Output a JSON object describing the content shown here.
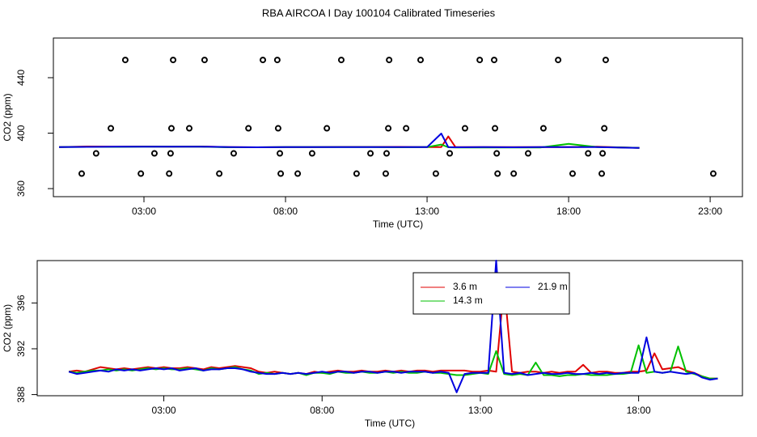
{
  "chart_data": [
    {
      "type": "line",
      "title": "RBA AIRCOA I  Day 100104  Calibrated Timeseries",
      "xlabel": "Time (UTC)",
      "ylabel": "CO2 (ppm)",
      "xlim": [
        -0.2,
        24.14
      ],
      "ylim": [
        354.2,
        468.6
      ],
      "xticks": [
        {
          "value": 3,
          "label": "03:00"
        },
        {
          "value": 8,
          "label": "08:00"
        },
        {
          "value": 13,
          "label": "13:00"
        },
        {
          "value": 18,
          "label": "18:00"
        },
        {
          "value": 23,
          "label": "23:00"
        }
      ],
      "yticks": [
        360,
        400,
        440
      ],
      "x": [
        0,
        1,
        2,
        3,
        4,
        5,
        6,
        7,
        8,
        9,
        10,
        11,
        12,
        13,
        13.5,
        13.75,
        14,
        15,
        16,
        17,
        18,
        19,
        20,
        20.5
      ],
      "series": [
        {
          "color": "#000000",
          "mode": "points",
          "x": [
            2.34,
            4.03,
            5.14,
            7.2,
            7.71,
            9.97,
            11.66,
            12.77,
            14.86,
            15.37,
            17.63,
            19.31,
            1.83,
            3.97,
            4.6,
            6.69,
            7.74,
            9.46,
            11.63,
            12.26,
            14.34,
            15.4,
            17.11,
            19.26,
            1.31,
            3.37,
            3.94,
            6.17,
            7.8,
            8.94,
            11.0,
            11.57,
            13.8,
            15.46,
            16.57,
            18.69,
            19.2,
            0.8,
            2.89,
            3.89,
            5.66,
            7.83,
            8.43,
            10.51,
            11.54,
            13.31,
            15.49,
            16.06,
            18.14,
            19.17,
            23.11
          ],
          "values": [
            452.8,
            452.8,
            452.8,
            452.8,
            452.8,
            452.8,
            452.8,
            452.8,
            452.8,
            452.8,
            452.8,
            452.8,
            403.5,
            403.5,
            403.5,
            403.5,
            403.5,
            403.5,
            403.5,
            403.5,
            403.5,
            403.5,
            403.5,
            403.5,
            385.4,
            385.4,
            385.4,
            385.4,
            385.4,
            385.4,
            385.4,
            385.4,
            385.4,
            385.4,
            385.4,
            385.4,
            385.4,
            370.8,
            370.8,
            370.8,
            370.8,
            370.8,
            370.8,
            370.8,
            370.8,
            370.8,
            370.8,
            370.8,
            370.8,
            370.8,
            370.8
          ]
        },
        {
          "color": "#e00000",
          "values": [
            390.0,
            390.4,
            390.2,
            390.4,
            390.3,
            390.4,
            390.0,
            389.8,
            389.9,
            390.0,
            390.1,
            390.1,
            390.1,
            390.0,
            390.0,
            397.6,
            390.0,
            389.9,
            390.0,
            390.0,
            390.0,
            390.3,
            389.6,
            389.4
          ]
        },
        {
          "color": "#00c000",
          "values": [
            390.0,
            390.1,
            390.1,
            390.3,
            390.2,
            390.3,
            389.8,
            389.8,
            389.9,
            389.9,
            390.0,
            389.9,
            389.8,
            389.9,
            391.8,
            389.8,
            389.7,
            389.7,
            389.7,
            389.7,
            392.3,
            390.0,
            389.6,
            389.4
          ]
        },
        {
          "color": "#0000e0",
          "values": [
            390.0,
            390.1,
            390.2,
            390.2,
            390.3,
            390.3,
            389.9,
            389.8,
            390.0,
            389.9,
            390.0,
            390.0,
            389.9,
            389.9,
            399.7,
            389.9,
            389.8,
            389.9,
            389.8,
            389.9,
            389.9,
            390.0,
            389.5,
            389.4
          ]
        }
      ]
    },
    {
      "type": "line",
      "xlabel": "Time (UTC)",
      "ylabel": "CO2 (ppm)",
      "xlim": [
        -1.0,
        21.28
      ],
      "ylim": [
        387.9,
        399.7
      ],
      "xticks": [
        {
          "value": 3,
          "label": "03:00"
        },
        {
          "value": 8,
          "label": "08:00"
        },
        {
          "value": 13,
          "label": "13:00"
        },
        {
          "value": 18,
          "label": "18:00"
        }
      ],
      "yticks": [
        388,
        392,
        396
      ],
      "legend": "top",
      "x": [
        0,
        0.25,
        0.5,
        0.75,
        1,
        1.25,
        1.5,
        1.75,
        2,
        2.25,
        2.5,
        2.75,
        3,
        3.25,
        3.5,
        3.75,
        4,
        4.25,
        4.5,
        4.75,
        5,
        5.25,
        5.5,
        5.75,
        6,
        6.25,
        6.5,
        6.75,
        7,
        7.25,
        7.5,
        7.75,
        8,
        8.25,
        8.5,
        8.75,
        9,
        9.25,
        9.5,
        9.75,
        10,
        10.25,
        10.5,
        10.75,
        11,
        11.25,
        11.5,
        11.75,
        12,
        12.25,
        12.5,
        12.75,
        13,
        13.25,
        13.5,
        13.75,
        14,
        14.25,
        14.5,
        14.75,
        15,
        15.25,
        15.5,
        15.75,
        16,
        16.25,
        16.5,
        16.75,
        17,
        17.25,
        17.5,
        17.75,
        18,
        18.25,
        18.5,
        18.75,
        19,
        19.25,
        19.5,
        19.75,
        20,
        20.25,
        20.5
      ],
      "series": [
        {
          "name": "3.6 m",
          "color": "#e00000",
          "values": [
            390.0,
            390.1,
            390.0,
            390.2,
            390.4,
            390.3,
            390.2,
            390.3,
            390.2,
            390.3,
            390.4,
            390.3,
            390.4,
            390.3,
            390.3,
            390.4,
            390.3,
            390.2,
            390.4,
            390.3,
            390.4,
            390.5,
            390.4,
            390.3,
            390.0,
            389.9,
            390.0,
            389.9,
            389.8,
            389.9,
            389.8,
            390.0,
            389.9,
            390.0,
            390.1,
            390.0,
            390.0,
            390.1,
            390.0,
            390.0,
            390.1,
            390.0,
            390.1,
            390.0,
            390.1,
            390.1,
            390.0,
            390.1,
            390.1,
            390.1,
            390.1,
            390.0,
            390.0,
            390.1,
            390.0,
            397.6,
            390.0,
            389.9,
            390.0,
            390.0,
            389.9,
            390.0,
            389.9,
            390.0,
            390.0,
            390.6,
            389.9,
            390.0,
            390.0,
            389.9,
            389.9,
            390.0,
            390.0,
            390.1,
            391.6,
            390.2,
            390.3,
            390.4,
            390.1,
            389.9,
            389.6,
            389.4,
            389.4
          ]
        },
        {
          "name": "14.3 m",
          "color": "#00c000",
          "values": [
            390.0,
            389.9,
            390.0,
            390.1,
            390.1,
            390.2,
            390.1,
            390.2,
            390.1,
            390.2,
            390.3,
            390.2,
            390.3,
            390.2,
            390.2,
            390.3,
            390.2,
            390.1,
            390.3,
            390.2,
            390.3,
            390.4,
            390.2,
            390.1,
            389.8,
            389.9,
            389.8,
            389.9,
            389.8,
            389.9,
            389.7,
            389.9,
            389.9,
            389.8,
            390.0,
            389.9,
            389.9,
            390.0,
            389.9,
            389.9,
            390.0,
            389.9,
            390.0,
            389.9,
            389.9,
            390.0,
            389.9,
            389.9,
            389.8,
            389.7,
            389.7,
            389.8,
            389.9,
            389.8,
            391.8,
            389.8,
            389.7,
            389.8,
            389.7,
            390.8,
            389.7,
            389.7,
            389.6,
            389.7,
            389.7,
            389.8,
            389.7,
            389.7,
            389.7,
            389.8,
            389.8,
            389.9,
            392.3,
            389.9,
            390.0,
            389.9,
            390.0,
            392.2,
            390.0,
            389.8,
            389.6,
            389.4,
            389.4
          ]
        },
        {
          "name": "21.9 m",
          "color": "#0000e0",
          "values": [
            390.0,
            389.8,
            389.9,
            390.0,
            390.1,
            390.0,
            390.2,
            390.1,
            390.2,
            390.1,
            390.2,
            390.3,
            390.2,
            390.3,
            390.1,
            390.2,
            390.3,
            390.1,
            390.2,
            390.2,
            390.3,
            390.3,
            390.2,
            390.0,
            389.9,
            389.8,
            389.8,
            389.9,
            389.8,
            389.9,
            389.8,
            389.9,
            390.0,
            389.9,
            390.0,
            390.0,
            389.9,
            390.0,
            390.0,
            389.9,
            390.0,
            390.0,
            389.9,
            390.0,
            390.0,
            390.0,
            389.9,
            390.0,
            389.9,
            388.2,
            389.8,
            389.9,
            389.9,
            389.9,
            399.7,
            389.9,
            389.8,
            389.9,
            389.7,
            389.8,
            389.9,
            389.8,
            389.8,
            389.9,
            389.8,
            389.8,
            389.9,
            389.8,
            389.9,
            389.8,
            389.9,
            389.9,
            389.9,
            393.0,
            390.0,
            389.9,
            390.0,
            389.9,
            389.8,
            389.9,
            389.5,
            389.3,
            389.4
          ]
        }
      ]
    }
  ]
}
